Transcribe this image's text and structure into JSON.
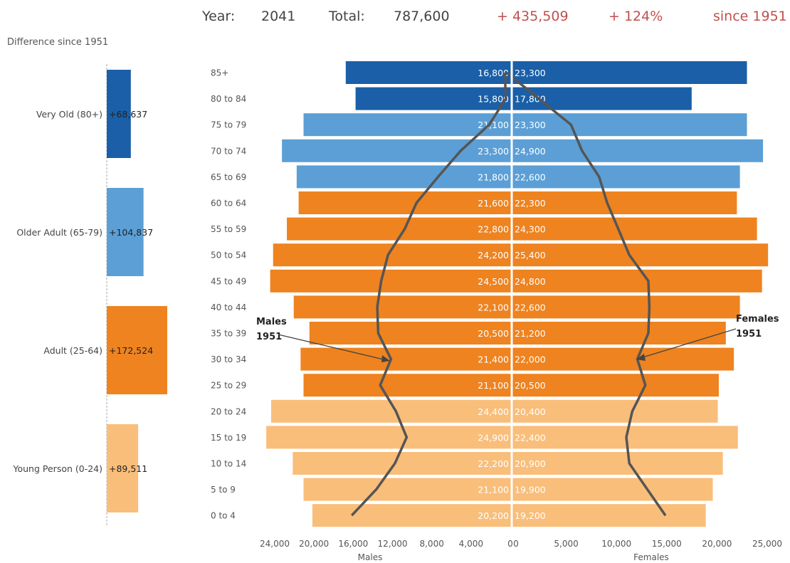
{
  "header": {
    "year_label": "Year:",
    "year_value": "2041",
    "total_label": "Total:",
    "total_value": "787,600",
    "diff_abs": "+ 435,509",
    "diff_pct": "+ 124%",
    "since": "since 1951"
  },
  "left_panel": {
    "title": "Difference since 1951",
    "groups": [
      {
        "label": "Very Old (80+)",
        "value": 68637,
        "text": "+68,637",
        "color": "#1a5fa8"
      },
      {
        "label": "Older Adult (65-79)",
        "value": 104837,
        "text": "+104,837",
        "color": "#5b9fd6"
      },
      {
        "label": "Adult (25-64)",
        "value": 172524,
        "text": "+172,524",
        "color": "#ee8320"
      },
      {
        "label": "Young Person (0-24)",
        "value": 89511,
        "text": "+89,511",
        "color": "#f9be7a"
      }
    ]
  },
  "chart_data": {
    "type": "bar",
    "orientation": "horizontal-pyramid",
    "categories": [
      "85+",
      "80 to 84",
      "75 to 79",
      "70 to 74",
      "65 to 69",
      "60 to 64",
      "55 to 59",
      "50 to 54",
      "45 to 49",
      "40 to 44",
      "35 to 39",
      "30 to 34",
      "25 to 29",
      "20 to 24",
      "15 to 19",
      "10 to 14",
      "5 to 9",
      "0 to 4"
    ],
    "series": [
      {
        "name": "Males",
        "values": [
          16800,
          15800,
          21100,
          23300,
          21800,
          21600,
          22800,
          24200,
          24500,
          22100,
          20500,
          21400,
          21100,
          24400,
          24900,
          22200,
          21100,
          20200
        ]
      },
      {
        "name": "Females",
        "values": [
          23300,
          17800,
          23300,
          24900,
          22600,
          22300,
          24300,
          25400,
          24800,
          22600,
          21200,
          22000,
          20500,
          20400,
          22400,
          20900,
          19900,
          19200
        ]
      }
    ],
    "labels_male": [
      "16,800",
      "15,800",
      "21,100",
      "23,300",
      "21,800",
      "21,600",
      "22,800",
      "24,200",
      "24,500",
      "22,100",
      "20,500",
      "21,400",
      "21,100",
      "24,400",
      "24,900",
      "22,200",
      "21,100",
      "20,200"
    ],
    "labels_female": [
      "23,300",
      "17,800",
      "23,300",
      "24,900",
      "22,600",
      "22,300",
      "24,300",
      "25,400",
      "24,800",
      "22,600",
      "21,200",
      "22,000",
      "20,500",
      "20,400",
      "22,400",
      "20,900",
      "19,900",
      "19,200"
    ],
    "band_colors": [
      "#1a5fa8",
      "#1a5fa8",
      "#5b9fd6",
      "#5b9fd6",
      "#5b9fd6",
      "#ee8320",
      "#ee8320",
      "#ee8320",
      "#ee8320",
      "#ee8320",
      "#ee8320",
      "#ee8320",
      "#ee8320",
      "#f9be7a",
      "#f9be7a",
      "#f9be7a",
      "#f9be7a",
      "#f9be7a"
    ],
    "males_1951": [
      700,
      600,
      2300,
      5200,
      7500,
      9700,
      10900,
      12600,
      13300,
      13700,
      13600,
      12300,
      13400,
      11800,
      10700,
      11900,
      13800,
      16300
    ],
    "females_1951": [
      -500,
      2700,
      5900,
      7000,
      8700,
      9500,
      10600,
      11700,
      13600,
      13700,
      13600,
      12500,
      13300,
      12000,
      11400,
      11700,
      13500,
      15300
    ],
    "males_axis": {
      "label": "Males",
      "ticks": [
        "24,000",
        "20,000",
        "16,000",
        "12,000",
        "8,000",
        "4,000",
        "0"
      ],
      "tick_values": [
        24000,
        20000,
        16000,
        12000,
        8000,
        4000,
        0
      ],
      "range": [
        0,
        25500
      ]
    },
    "females_axis": {
      "label": "Females",
      "ticks": [
        "0",
        "5,000",
        "10,000",
        "15,000",
        "20,000",
        "25,000"
      ],
      "tick_values": [
        0,
        5000,
        10000,
        15000,
        20000,
        25000
      ],
      "range": [
        0,
        26000
      ]
    },
    "annotations": {
      "males": [
        "Males",
        "1951"
      ],
      "females": [
        "Females",
        "1951"
      ]
    }
  }
}
